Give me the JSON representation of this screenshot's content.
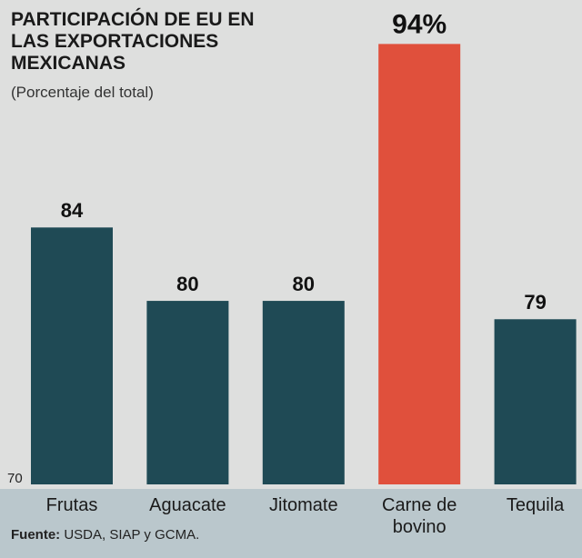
{
  "chart_data": {
    "type": "bar",
    "title": "PARTICIPACIÓN DE EU EN LAS EXPORTACIONES MEXICANAS",
    "subtitle": "(Porcentaje del total)",
    "categories": [
      "Frutas",
      "Aguacate",
      "Jitomate",
      "Carne de bovino",
      "Tequila"
    ],
    "values": [
      84,
      80,
      80,
      94,
      79
    ],
    "value_labels": [
      "84",
      "80",
      "80",
      "94%",
      "79"
    ],
    "colors": [
      "#1f4a55",
      "#1f4a55",
      "#1f4a55",
      "#e0503c",
      "#1f4a55"
    ],
    "ylim": [
      70,
      96
    ],
    "yticks": [
      70
    ],
    "source_label": "Fuente:",
    "source": "USDA, SIAP y GCMA."
  }
}
